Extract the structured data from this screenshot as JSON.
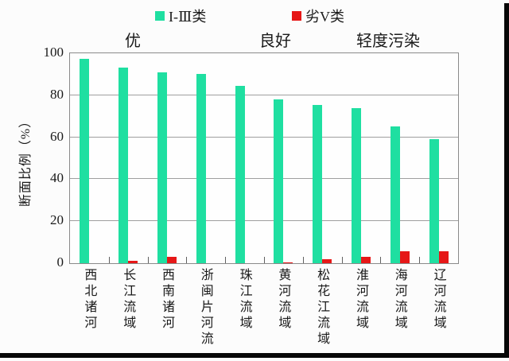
{
  "chart_data": {
    "type": "bar",
    "title": "",
    "xlabel": "",
    "ylabel": "断面比例（%）",
    "ylim": [
      0,
      100
    ],
    "yticks": [
      0,
      20,
      40,
      60,
      80,
      100
    ],
    "grid": true,
    "legend_position": "top",
    "categories": [
      "西北诸河",
      "长江流域",
      "西南诸河",
      "浙闽片河流",
      "珠江流域",
      "黄河流域",
      "松花江流域",
      "淮河流域",
      "海河流域",
      "辽河流域"
    ],
    "series": [
      {
        "name": "I-Ⅲ类",
        "color": "#1FDFA1",
        "values": [
          97.5,
          93,
          91,
          90,
          84.5,
          78,
          75.5,
          74,
          65,
          59
        ]
      },
      {
        "name": "劣V类",
        "color": "#E61717",
        "values": [
          0,
          1,
          3,
          0,
          0,
          0.5,
          2,
          3,
          5.5,
          5.5
        ]
      }
    ],
    "annotations": [
      {
        "text": "优"
      },
      {
        "text": "良好"
      },
      {
        "text": "轻度污染"
      }
    ]
  }
}
